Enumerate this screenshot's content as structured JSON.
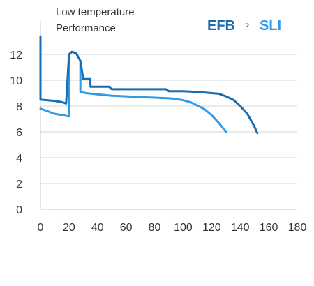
{
  "chart_data": {
    "type": "line",
    "title": "Low temperature",
    "subtitle": "Performance",
    "xlabel": "",
    "ylabel": "",
    "xlim": [
      0,
      180
    ],
    "ylim": [
      0,
      13
    ],
    "x_ticks": [
      0,
      20,
      40,
      60,
      80,
      100,
      120,
      140,
      160,
      180
    ],
    "y_ticks": [
      0,
      2,
      4,
      6,
      8,
      10,
      12
    ],
    "grid": "horizontal",
    "legend": {
      "placement": "top-right",
      "separator": "›",
      "items": [
        "EFB",
        "SLI"
      ]
    },
    "series": [
      {
        "name": "EFB",
        "color": "#1a6cb0",
        "x": [
          0,
          0,
          0,
          5,
          10,
          15,
          18,
          20,
          22,
          25,
          28,
          30,
          30,
          33,
          35,
          35,
          48,
          50,
          60,
          70,
          80,
          88,
          90,
          92,
          100,
          110,
          115,
          120,
          125,
          130,
          135,
          140,
          145,
          150,
          152
        ],
        "y": [
          13.4,
          10.5,
          8.5,
          8.45,
          8.4,
          8.3,
          8.2,
          12.0,
          12.2,
          12.1,
          11.5,
          10.1,
          10.1,
          10.1,
          10.1,
          9.5,
          9.5,
          9.3,
          9.3,
          9.3,
          9.3,
          9.3,
          9.15,
          9.15,
          9.15,
          9.1,
          9.05,
          9.0,
          8.95,
          8.75,
          8.5,
          8.0,
          7.4,
          6.4,
          5.9
        ]
      },
      {
        "name": "SLI",
        "color": "#2f9ae8",
        "x": [
          0,
          5,
          10,
          15,
          20,
          20,
          22,
          25,
          28,
          28,
          32,
          40,
          50,
          60,
          70,
          80,
          90,
          95,
          100,
          105,
          110,
          115,
          120,
          125,
          130
        ],
        "y": [
          7.8,
          7.6,
          7.4,
          7.3,
          7.2,
          12.0,
          12.2,
          12.1,
          11.5,
          9.1,
          9.0,
          8.9,
          8.8,
          8.75,
          8.7,
          8.65,
          8.6,
          8.55,
          8.45,
          8.3,
          8.05,
          7.75,
          7.3,
          6.7,
          6.0
        ]
      }
    ]
  }
}
